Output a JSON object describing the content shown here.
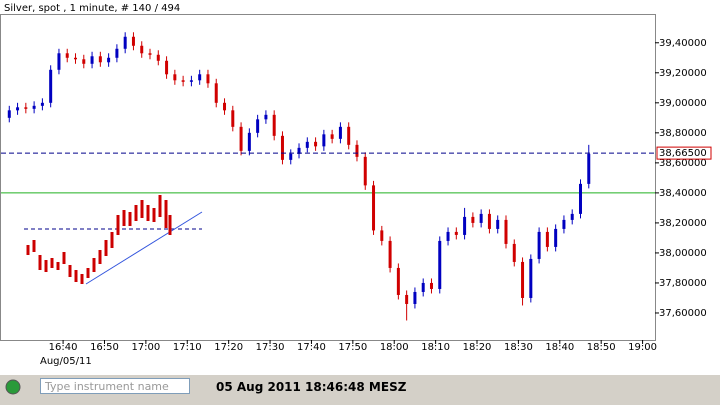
{
  "chart_data": {
    "type": "candlestick",
    "title": "Silver, spot , 1 minute, # 140 / 494",
    "date_label": "Aug/05/11",
    "xlim": [
      985,
      1143
    ],
    "xticks": [
      {
        "value": 1000,
        "label": "16:40"
      },
      {
        "value": 1010,
        "label": "16:50"
      },
      {
        "value": 1020,
        "label": "17:00"
      },
      {
        "value": 1030,
        "label": "17:10"
      },
      {
        "value": 1040,
        "label": "17:20"
      },
      {
        "value": 1050,
        "label": "17:30"
      },
      {
        "value": 1060,
        "label": "17:40"
      },
      {
        "value": 1070,
        "label": "17:50"
      },
      {
        "value": 1080,
        "label": "18:00"
      },
      {
        "value": 1090,
        "label": "18:10"
      },
      {
        "value": 1100,
        "label": "18:20"
      },
      {
        "value": 1110,
        "label": "18:30"
      },
      {
        "value": 1120,
        "label": "18:40"
      },
      {
        "value": 1130,
        "label": "18:50"
      },
      {
        "value": 1140,
        "label": "19:00"
      }
    ],
    "ylim": [
      37.42,
      39.585
    ],
    "yticks": [
      {
        "value": 37.6,
        "label": "37,60000"
      },
      {
        "value": 37.8,
        "label": "37,80000"
      },
      {
        "value": 38.0,
        "label": "38,00000"
      },
      {
        "value": 38.2,
        "label": "38,20000"
      },
      {
        "value": 38.4,
        "label": "38,40000"
      },
      {
        "value": 38.6,
        "label": "38,60000"
      },
      {
        "value": 38.8,
        "label": "38,80000"
      },
      {
        "value": 39.0,
        "label": "39,00000"
      },
      {
        "value": 39.2,
        "label": "39,20000"
      },
      {
        "value": 39.4,
        "label": "39,40000"
      }
    ],
    "current_price": {
      "value": 38.665,
      "label": "38,66500"
    },
    "reference_line": 38.4,
    "up_color": "#0000c0",
    "down_color": "#d00000",
    "reference_color": "#22b022",
    "x": [
      987,
      989,
      991,
      993,
      995,
      997,
      999,
      1001,
      1003,
      1005,
      1007,
      1009,
      1011,
      1013,
      1015,
      1017,
      1019,
      1021,
      1023,
      1025,
      1027,
      1029,
      1031,
      1033,
      1035,
      1037,
      1039,
      1041,
      1043,
      1045,
      1047,
      1049,
      1051,
      1053,
      1055,
      1057,
      1059,
      1061,
      1063,
      1065,
      1067,
      1069,
      1071,
      1073,
      1075,
      1077,
      1079,
      1081,
      1083,
      1085,
      1087,
      1089,
      1091,
      1093,
      1095,
      1097,
      1099,
      1101,
      1103,
      1105,
      1107,
      1109,
      1111,
      1113,
      1115,
      1117,
      1119,
      1121,
      1123,
      1125,
      1127
    ],
    "open": [
      38.9,
      38.95,
      38.97,
      38.96,
      38.98,
      39.0,
      39.22,
      39.33,
      39.3,
      39.29,
      39.26,
      39.31,
      39.27,
      39.3,
      39.36,
      39.44,
      39.38,
      39.33,
      39.32,
      39.28,
      39.19,
      39.15,
      39.14,
      39.15,
      39.19,
      39.13,
      39.0,
      38.95,
      38.84,
      38.68,
      38.8,
      38.89,
      38.92,
      38.78,
      38.62,
      38.66,
      38.7,
      38.74,
      38.71,
      38.79,
      38.76,
      38.84,
      38.72,
      38.64,
      38.45,
      38.15,
      38.08,
      37.9,
      37.72,
      37.66,
      37.74,
      37.8,
      37.76,
      38.08,
      38.14,
      38.12,
      38.24,
      38.2,
      38.26,
      38.16,
      38.22,
      38.06,
      37.94,
      37.7,
      37.96,
      38.14,
      38.04,
      38.16,
      38.22,
      38.26,
      38.46
    ],
    "high": [
      38.98,
      39.0,
      39.0,
      39.01,
      39.03,
      39.25,
      39.36,
      39.36,
      39.33,
      39.32,
      39.34,
      39.34,
      39.33,
      39.39,
      39.47,
      39.47,
      39.41,
      39.36,
      39.35,
      39.31,
      39.22,
      39.18,
      39.18,
      39.22,
      39.22,
      39.16,
      39.03,
      38.98,
      38.87,
      38.83,
      38.92,
      38.95,
      38.95,
      38.81,
      38.69,
      38.73,
      38.77,
      38.77,
      38.82,
      38.82,
      38.87,
      38.87,
      38.75,
      38.67,
      38.48,
      38.18,
      38.11,
      37.93,
      37.75,
      37.77,
      37.83,
      37.83,
      38.11,
      38.17,
      38.17,
      38.3,
      38.27,
      38.29,
      38.29,
      38.25,
      38.25,
      38.09,
      37.97,
      37.99,
      38.17,
      38.17,
      38.19,
      38.25,
      38.29,
      38.49,
      38.72
    ],
    "low": [
      38.87,
      38.92,
      38.93,
      38.93,
      38.95,
      38.97,
      39.19,
      39.27,
      39.26,
      39.23,
      39.23,
      39.24,
      39.24,
      39.27,
      39.33,
      39.35,
      39.3,
      39.29,
      39.25,
      39.16,
      39.12,
      39.11,
      39.11,
      39.12,
      39.1,
      38.97,
      38.92,
      38.81,
      38.65,
      38.65,
      38.77,
      38.86,
      38.75,
      38.59,
      38.59,
      38.63,
      38.67,
      38.68,
      38.68,
      38.73,
      38.73,
      38.69,
      38.61,
      38.42,
      38.12,
      38.05,
      37.87,
      37.69,
      37.55,
      37.63,
      37.71,
      37.73,
      37.73,
      38.05,
      38.09,
      38.09,
      38.17,
      38.17,
      38.13,
      38.13,
      38.03,
      37.91,
      37.65,
      37.67,
      37.93,
      38.01,
      38.01,
      38.13,
      38.19,
      38.23,
      38.43
    ],
    "close": [
      38.95,
      38.97,
      38.96,
      38.98,
      39.0,
      39.22,
      39.33,
      39.3,
      39.29,
      39.26,
      39.31,
      39.27,
      39.3,
      39.36,
      39.44,
      39.38,
      39.33,
      39.32,
      39.28,
      39.19,
      39.15,
      39.14,
      39.15,
      39.19,
      39.13,
      39.0,
      38.95,
      38.84,
      38.68,
      38.8,
      38.89,
      38.92,
      38.78,
      38.62,
      38.66,
      38.7,
      38.74,
      38.71,
      38.79,
      38.76,
      38.84,
      38.72,
      38.64,
      38.45,
      38.15,
      38.08,
      37.9,
      37.72,
      37.66,
      37.74,
      37.8,
      37.76,
      38.08,
      38.14,
      38.12,
      38.24,
      38.2,
      38.26,
      38.16,
      38.22,
      38.06,
      37.94,
      37.7,
      37.96,
      38.14,
      38.04,
      38.16,
      38.22,
      38.26,
      38.46,
      38.66
    ]
  },
  "status": {
    "search_placeholder": "Type instrument name",
    "timestamp": "05 Aug 2011 18:46:48 MESZ"
  }
}
